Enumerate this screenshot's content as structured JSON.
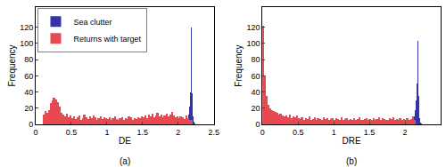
{
  "chart_data": [
    {
      "type": "histogram",
      "x_label": "DE",
      "y_label": "Frequency",
      "annotations": [
        "(a)"
      ],
      "xlim": [
        0,
        2.5
      ],
      "xticks": [
        0,
        0.5,
        1,
        1.5,
        2,
        2.5
      ],
      "ylim": [
        0,
        145
      ],
      "yticks": [
        0,
        20,
        40,
        60,
        80,
        100,
        120
      ],
      "grid": false,
      "legend": "upper left",
      "series": [
        {
          "name": "Sea clutter",
          "color": "#3333aa",
          "bins": [
            2.1,
            2.11,
            2.12,
            2.13,
            2.14,
            2.15,
            2.16,
            2.17,
            2.18,
            2.19,
            2.2,
            2.21,
            2.22,
            2.23
          ],
          "values": [
            1,
            2,
            3,
            5,
            8,
            12,
            22,
            40,
            120,
            38,
            10,
            3,
            1
          ]
        },
        {
          "name": "Returns with target",
          "color": "#e8484f",
          "bins": [
            0.1,
            0.125,
            0.15,
            0.175,
            0.2,
            0.225,
            0.25,
            0.275,
            0.3,
            0.325,
            0.35,
            0.375,
            0.4,
            0.425,
            0.45,
            0.475,
            0.5,
            0.525,
            0.55,
            0.575,
            0.6,
            0.625,
            0.65,
            0.675,
            0.7,
            0.725,
            0.75,
            0.775,
            0.8,
            0.825,
            0.85,
            0.875,
            0.9,
            0.925,
            0.95,
            0.975,
            1.0,
            1.025,
            1.05,
            1.075,
            1.1,
            1.125,
            1.15,
            1.175,
            1.2,
            1.225,
            1.25,
            1.275,
            1.3,
            1.325,
            1.35,
            1.375,
            1.4,
            1.425,
            1.45,
            1.475,
            1.5,
            1.525,
            1.55,
            1.575,
            1.6,
            1.625,
            1.65,
            1.675,
            1.7,
            1.725,
            1.75,
            1.775,
            1.8,
            1.825,
            1.85,
            1.875,
            1.9,
            1.925,
            1.95,
            1.975,
            2.0,
            2.025,
            2.05,
            2.075,
            2.1,
            2.125,
            2.15,
            2.175,
            2.2
          ],
          "values": [
            12,
            16,
            14,
            18,
            26,
            30,
            33,
            31,
            28,
            22,
            14,
            12,
            10,
            13,
            9,
            11,
            8,
            10,
            7,
            9,
            11,
            6,
            8,
            12,
            9,
            7,
            10,
            8,
            11,
            9,
            6,
            8,
            10,
            7,
            9,
            8,
            7,
            9,
            6,
            8,
            10,
            7,
            5,
            8,
            9,
            6,
            8,
            7,
            10,
            9,
            6,
            8,
            7,
            9,
            8,
            10,
            9,
            11,
            8,
            12,
            10,
            13,
            9,
            11,
            14,
            10,
            12,
            9,
            11,
            13,
            10,
            12,
            15,
            11,
            9,
            10,
            8,
            10,
            9,
            7,
            11,
            8,
            6,
            5
          ]
        }
      ]
    },
    {
      "type": "histogram",
      "x_label": "DRE",
      "y_label": "Frequency",
      "annotations": [
        "(b)"
      ],
      "xlim": [
        0,
        2.5
      ],
      "xticks": [
        0,
        0.5,
        1,
        1.5,
        2,
        2.5
      ],
      "ylim": [
        0,
        145
      ],
      "yticks": [
        0,
        20,
        40,
        60,
        80,
        100,
        120
      ],
      "grid": false,
      "series": [
        {
          "color": "#3333aa",
          "bins": [
            2.1,
            2.11,
            2.12,
            2.13,
            2.14,
            2.15,
            2.16,
            2.17,
            2.18,
            2.19,
            2.2,
            2.21,
            2.22,
            2.23
          ],
          "values": [
            1,
            2,
            4,
            6,
            10,
            18,
            30,
            50,
            103,
            35,
            8,
            2,
            1
          ]
        },
        {
          "color": "#e8484f",
          "bins": [
            0,
            0.025,
            0.05,
            0.075,
            0.1,
            0.125,
            0.15,
            0.175,
            0.2,
            0.225,
            0.25,
            0.275,
            0.3,
            0.325,
            0.35,
            0.375,
            0.4,
            0.425,
            0.45,
            0.475,
            0.5,
            0.525,
            0.55,
            0.575,
            0.6,
            0.625,
            0.65,
            0.675,
            0.7,
            0.725,
            0.75,
            0.775,
            0.8,
            0.825,
            0.85,
            0.875,
            0.9,
            0.925,
            0.95,
            0.975,
            1.0,
            1.025,
            1.05,
            1.075,
            1.1,
            1.125,
            1.15,
            1.175,
            1.2,
            1.225,
            1.25,
            1.275,
            1.3,
            1.325,
            1.35,
            1.375,
            1.4,
            1.425,
            1.45,
            1.475,
            1.5,
            1.525,
            1.55,
            1.575,
            1.6,
            1.625,
            1.65,
            1.675,
            1.7,
            1.725,
            1.75,
            1.775,
            1.8,
            1.825,
            1.85,
            1.875,
            1.9,
            1.925,
            1.95,
            1.975,
            2.0,
            2.025,
            2.05,
            2.075,
            2.1,
            2.125,
            2.15
          ],
          "values": [
            122,
            60,
            35,
            24,
            20,
            18,
            16,
            15,
            14,
            12,
            13,
            11,
            10,
            11,
            9,
            12,
            8,
            10,
            9,
            11,
            8,
            7,
            9,
            6,
            8,
            7,
            10,
            6,
            7,
            9,
            5,
            8,
            7,
            6,
            9,
            7,
            8,
            6,
            7,
            8,
            6,
            8,
            7,
            5,
            9,
            6,
            7,
            8,
            6,
            7,
            5,
            8,
            6,
            7,
            9,
            6,
            5,
            7,
            8,
            6,
            7,
            6,
            8,
            5,
            7,
            9,
            6,
            8,
            7,
            5,
            6,
            8,
            7,
            9,
            6,
            7,
            5,
            8,
            6,
            7,
            6,
            8,
            5,
            7,
            10,
            6
          ]
        }
      ]
    }
  ]
}
